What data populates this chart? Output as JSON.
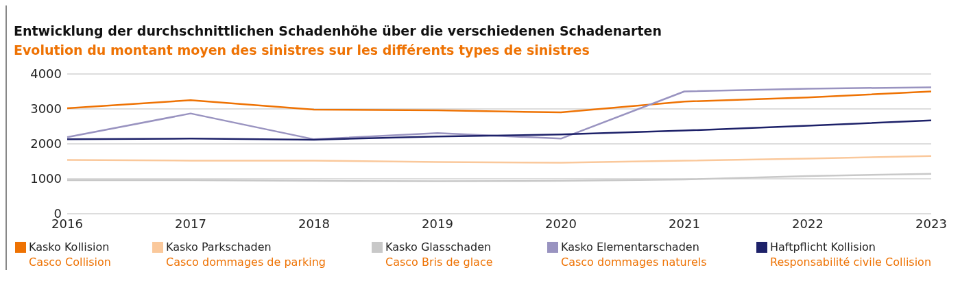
{
  "chart_data": {
    "type": "line",
    "title": "Entwicklung der durchschnittlichen Schadenhöhe über die verschiedenen Schadenarten",
    "subtitle": "Evolution du montant moyen des sinistres sur les différents types de sinistres",
    "categories": [
      "2016",
      "2017",
      "2018",
      "2019",
      "2020",
      "2021",
      "2022",
      "2023"
    ],
    "series": [
      {
        "name": "Kasko Kollision\nCasco Collision",
        "color": "#ee7203",
        "values": [
          3020,
          3250,
          2980,
          2960,
          2900,
          3210,
          3330,
          3500
        ]
      },
      {
        "name": "Kasko Parkschaden\nCasco dommages de parking",
        "color": "#fac89b",
        "values": [
          1540,
          1520,
          1520,
          1480,
          1460,
          1520,
          1580,
          1650
        ]
      },
      {
        "name": "Kasko Glasschaden\nCasco Bris de glace",
        "color": "#c8c8c8",
        "values": [
          960,
          960,
          940,
          930,
          940,
          980,
          1080,
          1140
        ]
      },
      {
        "name": "Kasko Elementarschaden\nCasco dommages naturels",
        "color": "#9993c0",
        "values": [
          2190,
          2870,
          2130,
          2310,
          2150,
          3500,
          3580,
          3620
        ]
      },
      {
        "name": "Haftpflicht Kollision\nResponsabilité civile Collision",
        "color": "#1d2169",
        "values": [
          2130,
          2150,
          2120,
          2210,
          2270,
          2380,
          2520,
          2670
        ]
      }
    ],
    "ylim": [
      0,
      4000
    ],
    "yticks": [
      0,
      1000,
      2000,
      3000,
      4000
    ],
    "grid": "y",
    "legend": "bottom",
    "marker": "none",
    "line_style": "solid"
  }
}
